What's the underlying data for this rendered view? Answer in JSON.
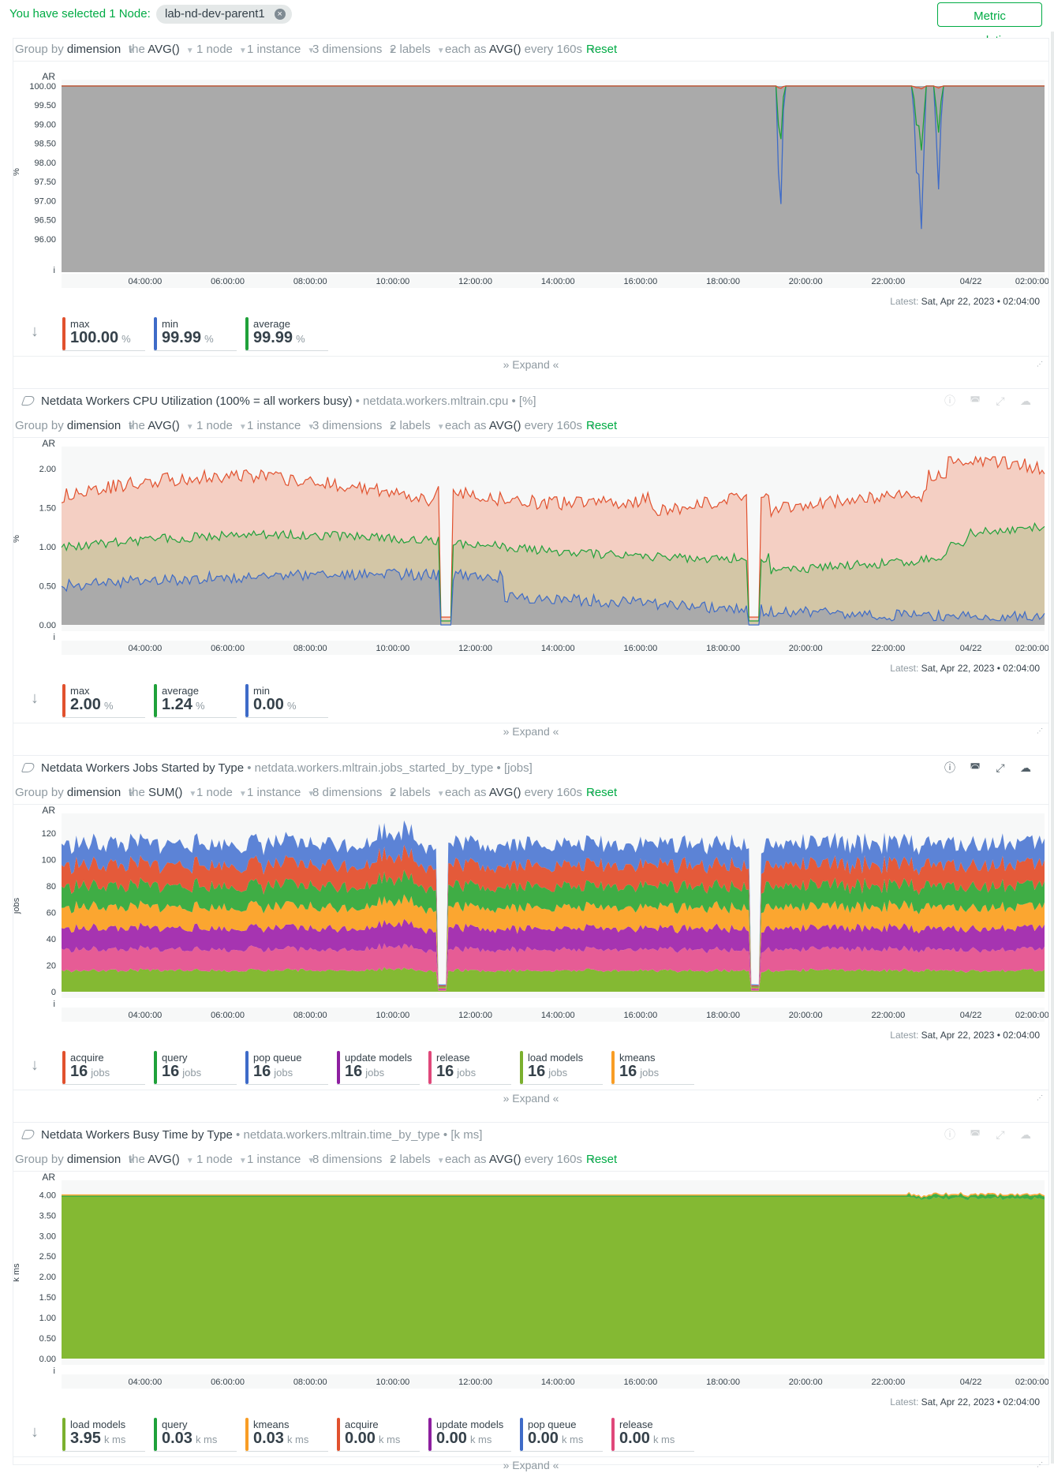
{
  "header": {
    "selected_text": "You have selected 1 Node:",
    "node_chip": "lab-nd-dev-parent1",
    "close_icon": "×",
    "metric_correlations": "Metric correlations"
  },
  "x_ticks": [
    "04:00:00",
    "06:00:00",
    "08:00:00",
    "10:00:00",
    "12:00:00",
    "14:00:00",
    "16:00:00",
    "18:00:00",
    "20:00:00",
    "22:00:00",
    "04/22",
    "02:00:00"
  ],
  "labels": {
    "ar": "AR",
    "i": "i",
    "latest_label": "Latest:",
    "latest_time": "Sat, Apr 22, 2023 • 02:04:00",
    "expand": "Expand",
    "group_by": "Group by",
    "group_by_value": "dimension",
    "the": "the",
    "each_as": "each as",
    "each_as_value": "AVG()",
    "every": "every 160s",
    "reset": "Reset",
    "node": "1 node",
    "instance": "1 instance",
    "labels_count": "2 labels"
  },
  "charts": [
    {
      "title": "",
      "context": "",
      "unit_label": "%",
      "aggregation": "AVG()",
      "dimensions": "3 dimensions",
      "y_ticks": [
        "100.00",
        "99.50",
        "99.00",
        "98.50",
        "98.00",
        "97.50",
        "97.00",
        "96.50",
        "96.00"
      ],
      "stats": [
        {
          "label": "max",
          "value": "100.00",
          "unit": "%",
          "color": "#e1512e"
        },
        {
          "label": "min",
          "value": "99.99",
          "unit": "%",
          "color": "#3e6bc8"
        },
        {
          "label": "average",
          "value": "99.99",
          "unit": "%",
          "color": "#1fa13a"
        }
      ],
      "chart_data": {
        "type": "area",
        "ylabel": "%",
        "ylim": [
          95.5,
          100
        ],
        "series": [
          {
            "name": "max",
            "color": "#e1512e"
          },
          {
            "name": "min",
            "color": "#3e6bc8"
          },
          {
            "name": "average",
            "color": "#1fa13a"
          }
        ]
      }
    },
    {
      "title": "Netdata Workers CPU Utilization (100% = all workers busy)",
      "context": "netdata.workers.mltrain.cpu",
      "unit_bracket": "[%]",
      "unit_label": "%",
      "aggregation": "AVG()",
      "dimensions": "3 dimensions",
      "y_ticks": [
        "2.00",
        "1.50",
        "1.00",
        "0.50",
        "0.00"
      ],
      "stats": [
        {
          "label": "max",
          "value": "2.00",
          "unit": "%",
          "color": "#e1512e"
        },
        {
          "label": "average",
          "value": "1.24",
          "unit": "%",
          "color": "#1fa13a"
        },
        {
          "label": "min",
          "value": "0.00",
          "unit": "%",
          "color": "#3e6bc8"
        }
      ],
      "chart_data": {
        "type": "area",
        "ylabel": "%",
        "ylim": [
          0,
          2.2
        ],
        "series": [
          {
            "name": "max",
            "color": "#e1512e"
          },
          {
            "name": "average",
            "color": "#1fa13a"
          },
          {
            "name": "min",
            "color": "#3e6bc8"
          }
        ]
      }
    },
    {
      "title": "Netdata Workers Jobs Started by Type",
      "context": "netdata.workers.mltrain.jobs_started_by_type",
      "unit_bracket": "[jobs]",
      "unit_label": "jobs",
      "aggregation": "SUM()",
      "dimensions": "8 dimensions",
      "y_ticks": [
        "120",
        "100",
        "80",
        "60",
        "40",
        "20",
        "0"
      ],
      "stats": [
        {
          "label": "acquire",
          "value": "16",
          "unit": "jobs",
          "color": "#e1512e"
        },
        {
          "label": "query",
          "value": "16",
          "unit": "jobs",
          "color": "#1fa13a"
        },
        {
          "label": "pop queue",
          "value": "16",
          "unit": "jobs",
          "color": "#3e6bc8"
        },
        {
          "label": "update models",
          "value": "16",
          "unit": "jobs",
          "color": "#8d1fa0"
        },
        {
          "label": "release",
          "value": "16",
          "unit": "jobs",
          "color": "#e0487a"
        },
        {
          "label": "load models",
          "value": "16",
          "unit": "jobs",
          "color": "#7bb02e"
        },
        {
          "label": "kmeans",
          "value": "16",
          "unit": "jobs",
          "color": "#f89d25"
        }
      ],
      "chart_data": {
        "type": "area",
        "stacked": true,
        "ylabel": "jobs",
        "ylim": [
          0,
          130
        ],
        "series": [
          {
            "name": "load models",
            "value": 16,
            "color": "#84b933"
          },
          {
            "name": "release",
            "value": 16,
            "color": "#e65c95"
          },
          {
            "name": "update models",
            "value": 16,
            "color": "#a634b1"
          },
          {
            "name": "kmeans",
            "value": 16,
            "color": "#fba630"
          },
          {
            "name": "query",
            "value": 16,
            "color": "#3fad45"
          },
          {
            "name": "acquire",
            "value": 16,
            "color": "#e45a3a"
          },
          {
            "name": "pop queue",
            "value": 16,
            "color": "#5c83d6"
          }
        ]
      }
    },
    {
      "title": "Netdata Workers Busy Time by Type",
      "context": "netdata.workers.mltrain.time_by_type",
      "unit_bracket": "[k ms]",
      "unit_label": "k ms",
      "aggregation": "AVG()",
      "dimensions": "8 dimensions",
      "y_ticks": [
        "4.00",
        "3.50",
        "3.00",
        "2.50",
        "2.00",
        "1.50",
        "1.00",
        "0.50",
        "0.00"
      ],
      "stats": [
        {
          "label": "load models",
          "value": "3.95",
          "unit": "k ms",
          "color": "#7bb02e"
        },
        {
          "label": "query",
          "value": "0.03",
          "unit": "k ms",
          "color": "#1fa13a"
        },
        {
          "label": "kmeans",
          "value": "0.03",
          "unit": "k ms",
          "color": "#f89d25"
        },
        {
          "label": "acquire",
          "value": "0.00",
          "unit": "k ms",
          "color": "#e1512e"
        },
        {
          "label": "update models",
          "value": "0.00",
          "unit": "k ms",
          "color": "#8d1fa0"
        },
        {
          "label": "pop queue",
          "value": "0.00",
          "unit": "k ms",
          "color": "#3e6bc8"
        },
        {
          "label": "release",
          "value": "0.00",
          "unit": "k ms",
          "color": "#e0487a"
        }
      ],
      "chart_data": {
        "type": "area",
        "stacked": true,
        "ylabel": "k ms",
        "ylim": [
          0,
          4.2
        ],
        "series": [
          {
            "name": "load models",
            "value": 3.95,
            "color": "#84b933"
          },
          {
            "name": "query",
            "value": 0.03,
            "color": "#3fad45"
          },
          {
            "name": "kmeans",
            "value": 0.03,
            "color": "#fba630"
          }
        ]
      }
    }
  ]
}
